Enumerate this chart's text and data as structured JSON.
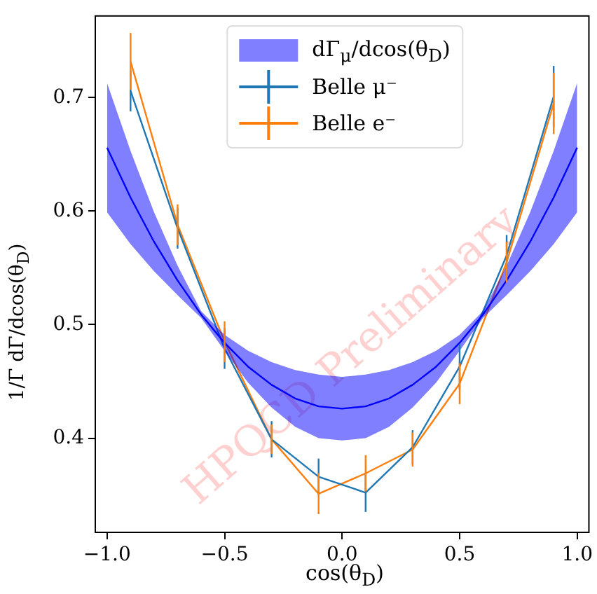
{
  "chart_data": {
    "type": "line",
    "xlabel": "cos(θ$_{D}$)",
    "ylabel": "1/Γ dΓ/dcos(θ$_{D}$)",
    "xlim": [
      -1.05,
      1.05
    ],
    "ylim": [
      0.317,
      0.772
    ],
    "xticks": [
      {
        "value": -1,
        "label": "−1.0"
      },
      {
        "value": -0.5,
        "label": "−0.5"
      },
      {
        "value": 0,
        "label": "0.0"
      },
      {
        "value": 0.5,
        "label": "0.5"
      },
      {
        "value": 1,
        "label": "1.0"
      }
    ],
    "yticks": [
      0.4,
      0.5,
      0.6,
      0.7
    ],
    "grid": false,
    "legend": "top",
    "marker": "none",
    "line_style": "solid",
    "annotations": [
      {
        "text": "HPQCD Preliminary"
      }
    ],
    "series": [
      {
        "name": "dΓ$_{μ}$/dcos(θ$_{D}$)",
        "color": "#0000ff",
        "x": [
          -1,
          -0.9,
          -0.8,
          -0.7,
          -0.6,
          -0.5,
          -0.4,
          -0.3,
          -0.2,
          -0.1,
          0,
          0.1,
          0.2,
          0.3,
          0.4,
          0.5,
          0.6,
          0.7,
          0.8,
          0.9,
          1
        ],
        "values": [
          0.656,
          0.612,
          0.573,
          0.539,
          0.509,
          0.484,
          0.463,
          0.447,
          0.435,
          0.428,
          0.426,
          0.428,
          0.435,
          0.447,
          0.463,
          0.484,
          0.509,
          0.539,
          0.573,
          0.612,
          0.656
        ],
        "lower": [
          0.599,
          0.571,
          0.547,
          0.526,
          0.506,
          0.477,
          0.449,
          0.427,
          0.41,
          0.4,
          0.398,
          0.4,
          0.41,
          0.427,
          0.449,
          0.477,
          0.506,
          0.526,
          0.547,
          0.571,
          0.599
        ],
        "upper": [
          0.713,
          0.653,
          0.599,
          0.552,
          0.512,
          0.491,
          0.477,
          0.467,
          0.46,
          0.456,
          0.454,
          0.456,
          0.46,
          0.467,
          0.477,
          0.491,
          0.512,
          0.552,
          0.599,
          0.653,
          0.713
        ]
      },
      {
        "name": "Belle μ⁻",
        "color": "#1f77b4",
        "x": [
          -0.9,
          -0.7,
          -0.5,
          -0.3,
          -0.1,
          0.1,
          0.3,
          0.5,
          0.7,
          0.9
        ],
        "values": [
          0.706,
          0.585,
          0.479,
          0.399,
          0.366,
          0.352,
          0.392,
          0.463,
          0.561,
          0.701
        ],
        "errors": [
          0.018,
          0.018,
          0.018,
          0.016,
          0.016,
          0.017,
          0.015,
          0.02,
          0.018,
          0.027
        ]
      },
      {
        "name": "Belle e⁻",
        "color": "#ff7f0e",
        "x": [
          -0.9,
          -0.7,
          -0.5,
          -0.3,
          -0.1,
          0.1,
          0.3,
          0.5,
          0.7,
          0.9
        ],
        "values": [
          0.732,
          0.588,
          0.485,
          0.399,
          0.351,
          0.369,
          0.39,
          0.448,
          0.555,
          0.695
        ],
        "errors": [
          0.025,
          0.018,
          0.018,
          0.013,
          0.018,
          0.016,
          0.015,
          0.018,
          0.018,
          0.027
        ]
      }
    ]
  }
}
